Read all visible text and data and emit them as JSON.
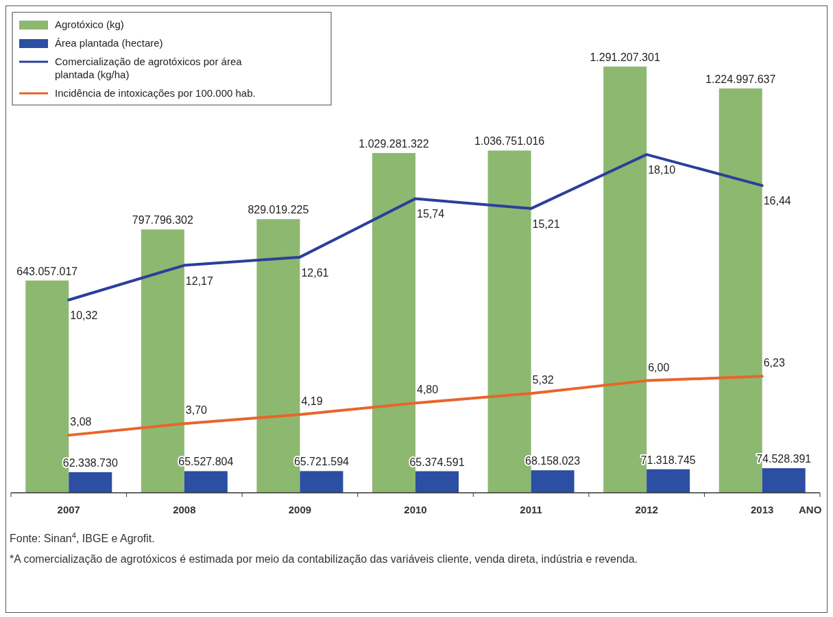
{
  "chart_data": {
    "type": "bar",
    "categories": [
      "2007",
      "2008",
      "2009",
      "2010",
      "2011",
      "2012",
      "2013"
    ],
    "xlabel": "ANO",
    "series": [
      {
        "name": "Agrotóxico (kg)",
        "axis": "y",
        "color": "#8db870",
        "values": [
          643057017,
          797796302,
          829019225,
          1029281322,
          1036751016,
          1291207301,
          1224997637
        ],
        "value_labels": [
          "643.057.017",
          "797.796.302",
          "829.019.225",
          "1.029.281.322",
          "1.036.751.016",
          "1.291.207.301",
          "1.224.997.637"
        ]
      },
      {
        "name": "Área plantada (hectare)",
        "axis": "y",
        "color": "#2c4ea3",
        "values": [
          62338730,
          65527804,
          65721594,
          65374591,
          68158023,
          71318745,
          74528391
        ],
        "value_labels": [
          "62.338.730",
          "65.527.804",
          "65.721.594",
          "65.374.591",
          "68.158.023",
          "71.318.745",
          "74.528.391"
        ]
      },
      {
        "name": "Comercialização de agrotóxicos por área plantada (kg/ha)",
        "type": "line",
        "axis": "y2",
        "color": "#2b3f9a",
        "values": [
          10.32,
          12.17,
          12.61,
          15.74,
          15.21,
          18.1,
          16.44
        ],
        "value_labels": [
          "10,32",
          "12,17",
          "12,61",
          "15,74",
          "15,21",
          "18,10",
          "16,44"
        ]
      },
      {
        "name": "Incidência de intoxicações por 100.000 hab.",
        "type": "line",
        "axis": "y2",
        "color": "#e8652a",
        "values": [
          3.08,
          3.7,
          4.19,
          4.8,
          5.32,
          6.0,
          6.23
        ],
        "value_labels": [
          "3,08",
          "3,70",
          "4,19",
          "4,80",
          "5,32",
          "6,00",
          "6,23"
        ]
      }
    ],
    "tick_labels": "x",
    "legend": "top left",
    "marker": "none",
    "line_style": "solid",
    "annotations": [
      "Fonte: Sinan$^{4}$, IBGE e Agrofit.",
      "*A comercialização de agrotóxicos é estimada por meio da contabilização das variáveis cliente, venda direta, indústria e revenda."
    ]
  }
}
